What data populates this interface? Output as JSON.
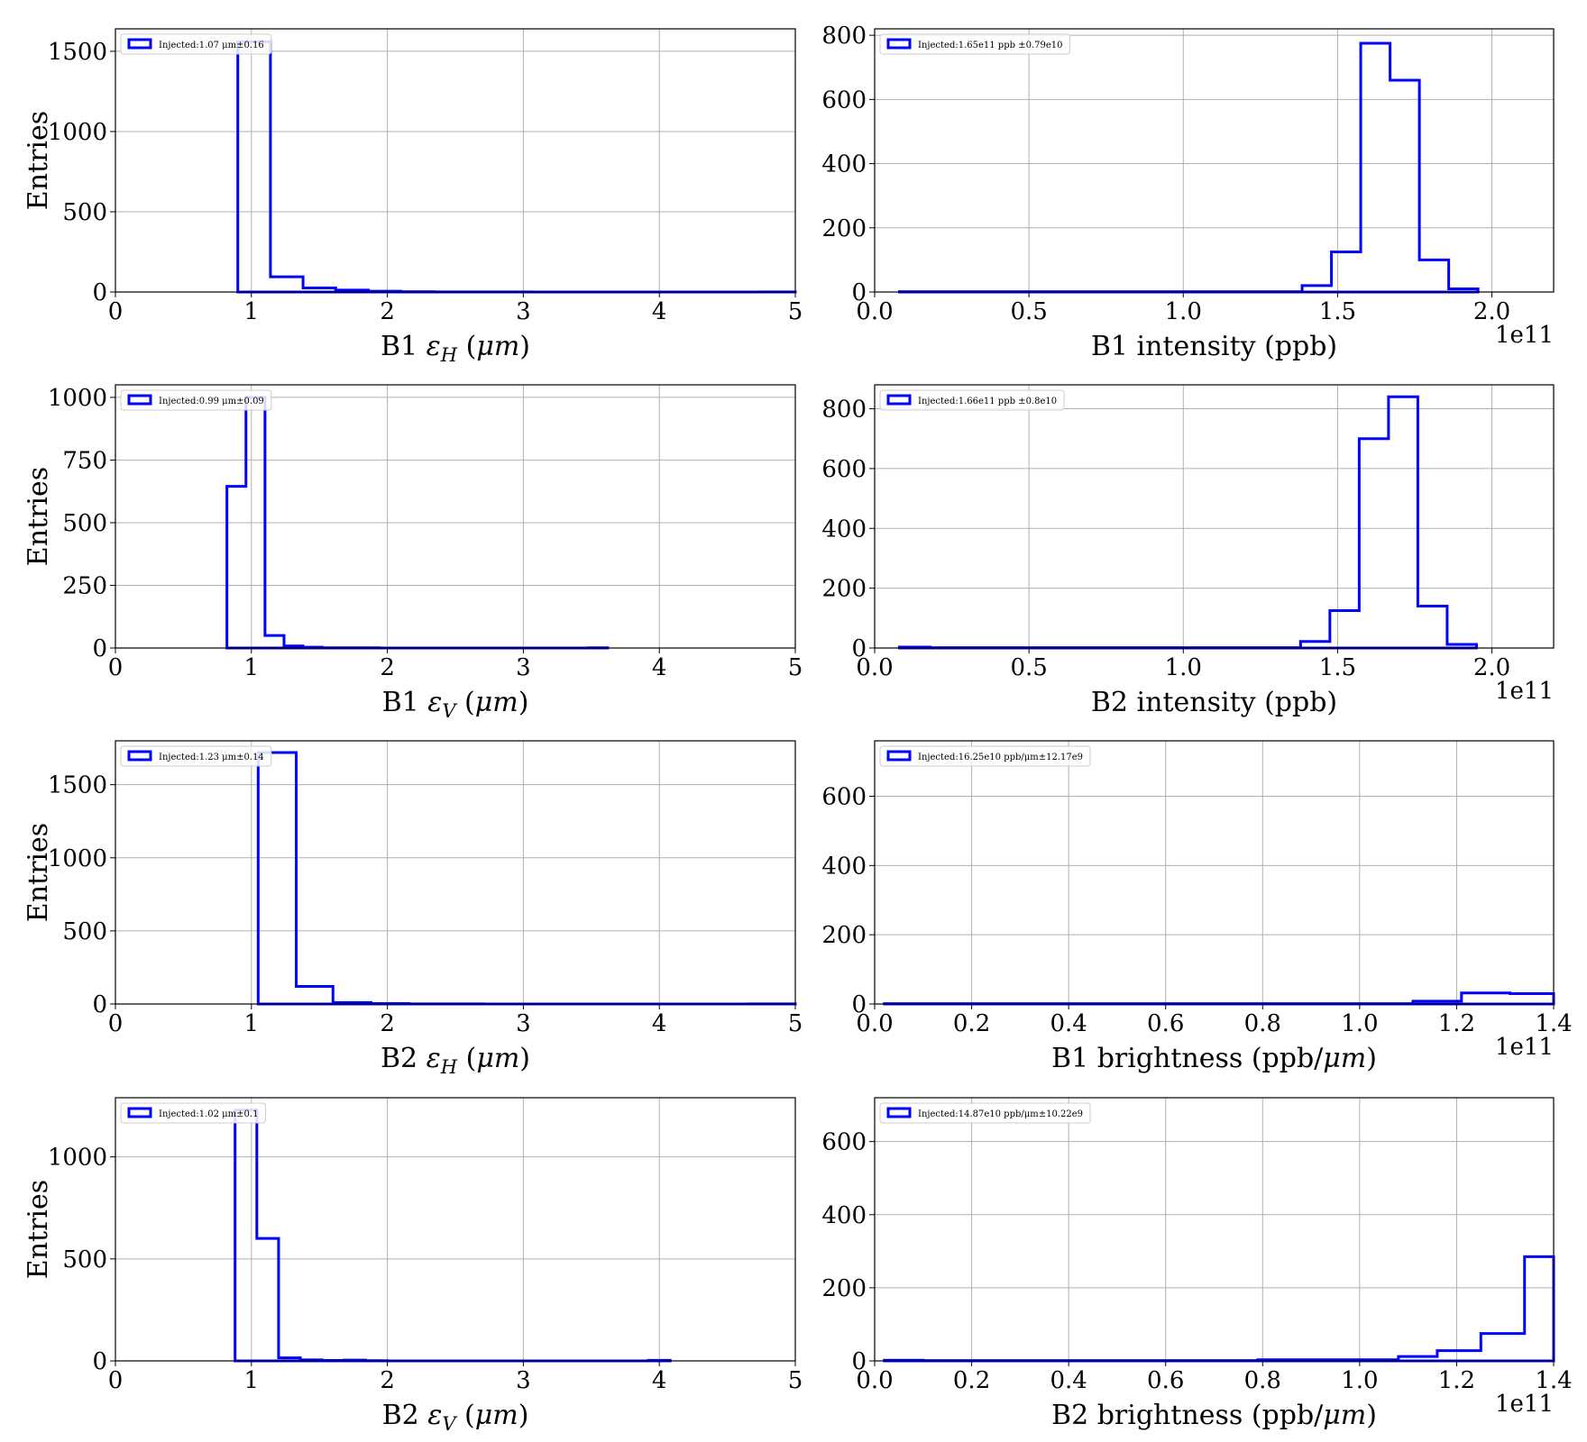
{
  "figure": {
    "background": "#ffffff",
    "line_color": "#0000ff",
    "grid_color": "#b0b0b0"
  },
  "chart_data": [
    {
      "id": "b1-eh",
      "type": "step-histogram",
      "xlabel": "B1 εH (μm)",
      "xlabel_parts": [
        "B1 ",
        "ε",
        "H",
        " (",
        "μm",
        ")"
      ],
      "ylabel": "Entries",
      "xlim": [
        0,
        5
      ],
      "ylim": [
        0,
        1640
      ],
      "xticks": [
        0,
        1,
        2,
        3,
        4,
        5
      ],
      "xtick_labels": [
        "0",
        "1",
        "2",
        "3",
        "4",
        "5"
      ],
      "yticks": [
        0,
        500,
        1000,
        1500
      ],
      "ytick_labels": [
        "0",
        "500",
        "1000",
        "1500"
      ],
      "offset_text": "",
      "grid": true,
      "legend": "upper left",
      "legend_label": "Injected:1.07 μm±0.16",
      "bin_edges": [
        0.9,
        1.14,
        1.38,
        1.62,
        1.86,
        2.1,
        2.34,
        2.58,
        2.82,
        3.06,
        3.3,
        3.54,
        3.78,
        4.02,
        4.26,
        4.5,
        4.74,
        5.0
      ],
      "counts": [
        1560,
        95,
        25,
        12,
        5,
        2,
        1,
        1,
        1,
        0,
        0,
        0,
        0,
        0,
        0,
        0,
        1
      ]
    },
    {
      "id": "b1-intensity",
      "type": "step-histogram",
      "xlabel": "B1 intensity (ppb)",
      "xlabel_parts": [
        "B1 intensity (ppb)"
      ],
      "ylabel": "",
      "xlim": [
        0,
        2.2
      ],
      "ylim": [
        0,
        820
      ],
      "xticks": [
        0,
        0.5,
        1.0,
        1.5,
        2.0
      ],
      "xtick_labels": [
        "0.0",
        "0.5",
        "1.0",
        "1.5",
        "2.0"
      ],
      "yticks": [
        0,
        200,
        400,
        600,
        800
      ],
      "ytick_labels": [
        "0",
        "200",
        "400",
        "600",
        "800"
      ],
      "offset_text": "1e11",
      "grid": true,
      "legend": "upper left",
      "legend_label": "Injected:1.65e11 ppb ±0.79e10",
      "bin_edges": [
        0.08,
        1.385,
        1.48,
        1.575,
        1.67,
        1.765,
        1.86,
        1.955
      ],
      "counts": [
        1,
        20,
        125,
        775,
        660,
        100,
        10
      ]
    },
    {
      "id": "b1-ev",
      "type": "step-histogram",
      "xlabel": "B1 εV (μm)",
      "xlabel_parts": [
        "B1 ",
        "ε",
        "V",
        " (",
        "μm",
        ")"
      ],
      "ylabel": "Entries",
      "xlim": [
        0,
        5
      ],
      "ylim": [
        0,
        1050
      ],
      "xticks": [
        0,
        1,
        2,
        3,
        4,
        5
      ],
      "xtick_labels": [
        "0",
        "1",
        "2",
        "3",
        "4",
        "5"
      ],
      "yticks": [
        0,
        250,
        500,
        750,
        1000
      ],
      "ytick_labels": [
        "0",
        "250",
        "500",
        "750",
        "1000"
      ],
      "offset_text": "",
      "grid": true,
      "legend": "upper left",
      "legend_label": "Injected:0.99 μm±0.09",
      "bin_edges": [
        0.82,
        0.96,
        1.1,
        1.24,
        1.38,
        1.52,
        1.66,
        1.8,
        1.94,
        2.08,
        2.22,
        2.36,
        2.5,
        2.64,
        2.78,
        2.92,
        3.06,
        3.2,
        3.34,
        3.48,
        3.62
      ],
      "counts": [
        645,
        1000,
        50,
        8,
        3,
        1,
        1,
        1,
        0,
        0,
        0,
        0,
        0,
        0,
        0,
        0,
        0,
        0,
        0,
        1
      ]
    },
    {
      "id": "b2-intensity",
      "type": "step-histogram",
      "xlabel": "B2 intensity (ppb)",
      "xlabel_parts": [
        "B2 intensity (ppb)"
      ],
      "ylabel": "",
      "xlim": [
        0,
        2.2
      ],
      "ylim": [
        0,
        880
      ],
      "xticks": [
        0,
        0.5,
        1.0,
        1.5,
        2.0
      ],
      "xtick_labels": [
        "0.0",
        "0.5",
        "1.0",
        "1.5",
        "2.0"
      ],
      "yticks": [
        0,
        200,
        400,
        600,
        800
      ],
      "ytick_labels": [
        "0",
        "200",
        "400",
        "600",
        "800"
      ],
      "offset_text": "1e11",
      "grid": true,
      "legend": "upper left",
      "legend_label": "Injected:1.66e11 ppb ±0.8e10",
      "bin_edges": [
        0.08,
        0.18,
        1.38,
        1.475,
        1.57,
        1.665,
        1.76,
        1.855,
        1.95
      ],
      "counts": [
        3,
        1,
        22,
        125,
        700,
        840,
        140,
        12
      ]
    },
    {
      "id": "b2-eh",
      "type": "step-histogram",
      "xlabel": "B2 εH (μm)",
      "xlabel_parts": [
        "B2 ",
        "ε",
        "H",
        " (",
        "μm",
        ")"
      ],
      "ylabel": "Entries",
      "xlim": [
        0,
        5
      ],
      "ylim": [
        0,
        1800
      ],
      "xticks": [
        0,
        1,
        2,
        3,
        4,
        5
      ],
      "xtick_labels": [
        "0",
        "1",
        "2",
        "3",
        "4",
        "5"
      ],
      "yticks": [
        0,
        500,
        1000,
        1500
      ],
      "ytick_labels": [
        "0",
        "500",
        "1000",
        "1500"
      ],
      "offset_text": "",
      "grid": true,
      "legend": "upper left",
      "legend_label": "Injected:1.23 μm±0.14",
      "bin_edges": [
        1.05,
        1.33,
        1.6,
        1.88,
        2.16,
        2.43,
        2.71,
        2.99,
        3.26,
        3.54,
        3.82,
        4.1,
        4.37,
        4.65,
        5.0
      ],
      "counts": [
        1720,
        120,
        10,
        3,
        1,
        1,
        0,
        0,
        0,
        0,
        0,
        0,
        0,
        1
      ]
    },
    {
      "id": "b1-brightness",
      "type": "step-histogram",
      "xlabel": "B1 brightness (ppb/μm)",
      "xlabel_parts": [
        "B1 brightness (ppb/",
        "μm",
        ")"
      ],
      "ylabel": "",
      "xlim": [
        0,
        1.4
      ],
      "ylim": [
        0,
        760
      ],
      "xticks": [
        0,
        0.2,
        0.4,
        0.6,
        0.8,
        1.0,
        1.2,
        1.4
      ],
      "xtick_labels": [
        "0.0",
        "0.2",
        "0.4",
        "0.6",
        "0.8",
        "1.0",
        "1.2",
        "1.4"
      ],
      "yticks": [
        0,
        200,
        400,
        600
      ],
      "ytick_labels": [
        "0",
        "200",
        "400",
        "600"
      ],
      "offset_text": "1e11",
      "grid": true,
      "legend": "upper left",
      "legend_label": "Injected:16.25e10 ppb/μm±12.17e9",
      "bin_edges": [
        0.02,
        1.11,
        1.21,
        1.31,
        1.4
      ],
      "counts": [
        1,
        8,
        32,
        30
      ]
    },
    {
      "id": "b2-ev",
      "type": "step-histogram",
      "xlabel": "B2 εV (μm)",
      "xlabel_parts": [
        "B2 ",
        "ε",
        "V",
        " (",
        "μm",
        ")"
      ],
      "ylabel": "Entries",
      "xlim": [
        0,
        5
      ],
      "ylim": [
        0,
        1290
      ],
      "xticks": [
        0,
        1,
        2,
        3,
        4,
        5
      ],
      "xtick_labels": [
        "0",
        "1",
        "2",
        "3",
        "4",
        "5"
      ],
      "yticks": [
        0,
        500,
        1000
      ],
      "ytick_labels": [
        "0",
        "500",
        "1000"
      ],
      "offset_text": "",
      "grid": true,
      "legend": "upper left",
      "legend_label": "Injected:1.02 μm±0.1",
      "bin_edges": [
        0.88,
        1.04,
        1.2,
        1.36,
        1.52,
        1.68,
        1.84,
        2.0,
        2.16,
        2.32,
        2.48,
        2.64,
        2.8,
        2.96,
        3.12,
        3.28,
        3.44,
        3.6,
        3.76,
        3.92,
        4.08
      ],
      "counts": [
        1230,
        600,
        15,
        5,
        2,
        4,
        1,
        0,
        0,
        0,
        0,
        0,
        0,
        0,
        0,
        0,
        0,
        0,
        0,
        3
      ]
    },
    {
      "id": "b2-brightness",
      "type": "step-histogram",
      "xlabel": "B2 brightness (ppb/μm)",
      "xlabel_parts": [
        "B2 brightness (ppb/",
        "μm",
        ")"
      ],
      "ylabel": "",
      "xlim": [
        0,
        1.4
      ],
      "ylim": [
        0,
        720
      ],
      "xticks": [
        0,
        0.2,
        0.4,
        0.6,
        0.8,
        1.0,
        1.2,
        1.4
      ],
      "xtick_labels": [
        "0.0",
        "0.2",
        "0.4",
        "0.6",
        "0.8",
        "1.0",
        "1.2",
        "1.4"
      ],
      "yticks": [
        0,
        200,
        400,
        600
      ],
      "ytick_labels": [
        "0",
        "200",
        "400",
        "600"
      ],
      "offset_text": "1e11",
      "grid": true,
      "legend": "upper left",
      "legend_label": "Injected:14.87e10 ppb/μm±10.22e9",
      "bin_edges": [
        0.02,
        0.1,
        0.79,
        1.08,
        1.16,
        1.25,
        1.34,
        1.4
      ],
      "counts": [
        2,
        1,
        3,
        12,
        28,
        75,
        285
      ]
    }
  ]
}
